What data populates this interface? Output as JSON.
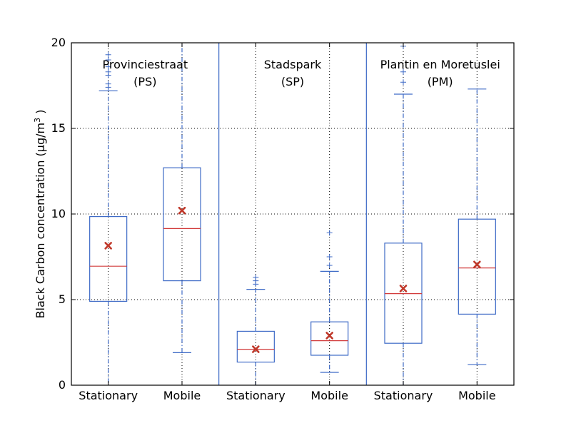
{
  "chart_data": {
    "type": "box",
    "ylabel_prefix": "Black Carbon concentration (µg/m",
    "ylabel_sup": "3",
    "ylabel_suffix": " )",
    "ylim": [
      0,
      20
    ],
    "yticks": [
      0,
      5,
      10,
      15,
      20
    ],
    "grid": true,
    "categories": [
      "Stationary",
      "Mobile",
      "Stationary",
      "Mobile",
      "Stationary",
      "Mobile"
    ],
    "groups": [
      {
        "name_line1": "Provinciestraat",
        "name_line2": "(PS)"
      },
      {
        "name_line1": "Stadspark",
        "name_line2": "(SP)"
      },
      {
        "name_line1": "Plantin en Moretuslei",
        "name_line2": "(PM)"
      }
    ],
    "boxes": [
      {
        "group": 0,
        "label": "Stationary",
        "whisker_low": 0,
        "q1": 4.9,
        "median": 6.95,
        "q3": 9.85,
        "whisker_high": 17.2,
        "mean": 8.15,
        "outliers": [
          17.4,
          17.6,
          18.1,
          18.3,
          18.6,
          19.0,
          19.3
        ]
      },
      {
        "group": 0,
        "label": "Mobile",
        "whisker_low": 1.9,
        "q1": 6.1,
        "median": 9.15,
        "q3": 12.7,
        "whisker_high": 20.0,
        "mean": 10.2,
        "outliers": []
      },
      {
        "group": 1,
        "label": "Stationary",
        "whisker_low": 0,
        "q1": 1.35,
        "median": 2.1,
        "q3": 3.15,
        "whisker_high": 5.6,
        "mean": 2.1,
        "outliers": [
          5.9,
          6.1,
          6.3
        ]
      },
      {
        "group": 1,
        "label": "Mobile",
        "whisker_low": 0.75,
        "q1": 1.75,
        "median": 2.6,
        "q3": 3.7,
        "whisker_high": 6.65,
        "mean": 2.9,
        "outliers": [
          7.0,
          7.5,
          8.9
        ]
      },
      {
        "group": 2,
        "label": "Stationary",
        "whisker_low": 0,
        "q1": 2.45,
        "median": 5.35,
        "q3": 8.3,
        "whisker_high": 17.0,
        "mean": 5.65,
        "outliers": [
          17.7,
          18.3,
          19.8
        ]
      },
      {
        "group": 2,
        "label": "Mobile",
        "whisker_low": 1.2,
        "q1": 4.15,
        "median": 6.85,
        "q3": 9.7,
        "whisker_high": 17.3,
        "mean": 7.05,
        "outliers": []
      }
    ],
    "colors": {
      "box": "#3e6ac6",
      "median": "#d23b3b",
      "mean": "#c0392b",
      "grid": "#000000",
      "separator": "#3e6ac6"
    }
  }
}
